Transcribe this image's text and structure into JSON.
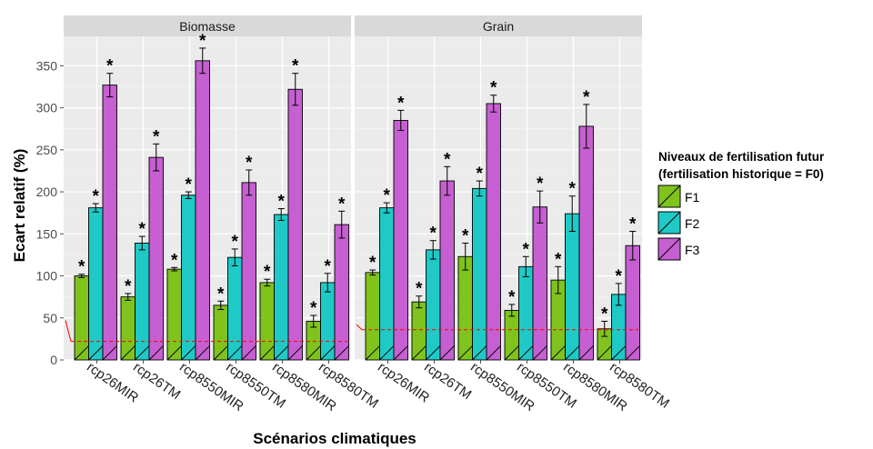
{
  "chart_data": {
    "type": "bar",
    "ylabel": "Ecart relatif (%)",
    "xlabel": "Scénarios climatiques",
    "ylim": [
      0,
      385
    ],
    "yticks": [
      0,
      50,
      100,
      150,
      200,
      250,
      300,
      350
    ],
    "grid": true,
    "categories": [
      "rcp26MIR",
      "rcp26TM",
      "rcp8550MIR",
      "rcp8550TM",
      "rcp8580MIR",
      "rcp8580TM"
    ],
    "legend": {
      "title_line1": "Niveaux de fertilisation futur",
      "title_line2": "(fertilisation historique = F0)",
      "placement": "right",
      "entries": [
        "F1",
        "F2",
        "F3"
      ]
    },
    "colors": {
      "F1": "#7fc31c",
      "F2": "#1fc9c6",
      "F3": "#c65fd1"
    },
    "significance_marker": "*",
    "panels": [
      {
        "title": "Biomasse",
        "reference_line": {
          "y_start": 47,
          "y": 22
        },
        "series": [
          {
            "name": "F1",
            "values": [
              100,
              75,
              108,
              65,
              92,
              46
            ],
            "errors": [
              2,
              4,
              2,
              5,
              4,
              7
            ]
          },
          {
            "name": "F2",
            "values": [
              181,
              139,
              196,
              122,
              173,
              92
            ],
            "errors": [
              5,
              8,
              4,
              10,
              7,
              11
            ]
          },
          {
            "name": "F3",
            "values": [
              327,
              241,
              356,
              211,
              322,
              161
            ],
            "errors": [
              14,
              16,
              15,
              15,
              19,
              16
            ]
          }
        ]
      },
      {
        "title": "Grain",
        "reference_line": {
          "y_start": 42,
          "y": 36
        },
        "series": [
          {
            "name": "F1",
            "values": [
              104,
              69,
              123,
              59,
              95,
              37
            ],
            "errors": [
              3,
              7,
              16,
              7,
              16,
              9
            ]
          },
          {
            "name": "F2",
            "values": [
              181,
              131,
              204,
              111,
              174,
              78
            ],
            "errors": [
              6,
              11,
              9,
              12,
              21,
              13
            ]
          },
          {
            "name": "F3",
            "values": [
              285,
              213,
              305,
              182,
              278,
              136
            ],
            "errors": [
              12,
              17,
              10,
              19,
              26,
              17
            ]
          }
        ]
      }
    ]
  }
}
